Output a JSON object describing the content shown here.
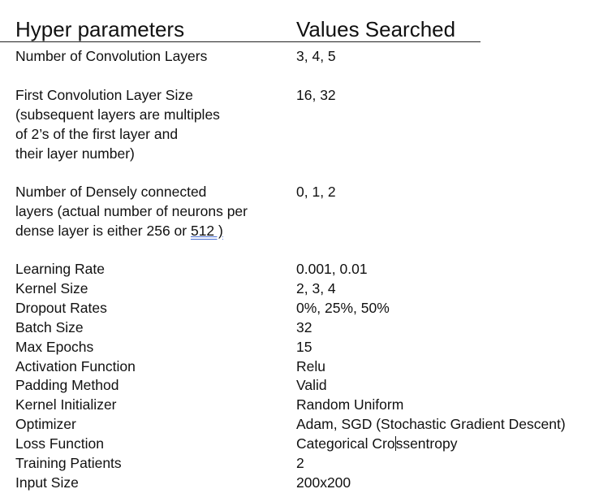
{
  "header": {
    "col1": "Hyper parameters",
    "col2": "Values Searched"
  },
  "rows": [
    {
      "param_lines": [
        "Number of Convolution Layers"
      ],
      "value": "3, 4, 5"
    },
    {
      "param_lines": [
        "First Convolution Layer Size",
        "(subsequent layers are multiples",
        "of 2’s of the first layer and",
        "their layer number)"
      ],
      "value": "16, 32"
    },
    {
      "param_lines": [
        "Number of Densely connected",
        "layers (actual number of neurons per",
        "dense layer is either 256 or "
      ],
      "param_tail_underlined": "512 )",
      "value": "0, 1, 2"
    },
    {
      "param_lines": [
        "Learning Rate"
      ],
      "value": "0.001, 0.01"
    },
    {
      "param_lines": [
        "Kernel Size"
      ],
      "value": "2, 3, 4"
    },
    {
      "param_lines": [
        "Dropout Rates"
      ],
      "value": "0%, 25%, 50%"
    },
    {
      "param_lines": [
        "Batch Size"
      ],
      "value": "32"
    },
    {
      "param_lines": [
        "Max Epochs"
      ],
      "value": "15"
    },
    {
      "param_lines": [
        "Activation Function"
      ],
      "value": "Relu"
    },
    {
      "param_lines": [
        "Padding Method"
      ],
      "value": "Valid"
    },
    {
      "param_lines": [
        "Kernel Initializer"
      ],
      "value": "Random Uniform"
    },
    {
      "param_lines": [
        "Optimizer"
      ],
      "value": "Adam, SGD (Stochastic Gradient Descent)"
    },
    {
      "param_lines": [
        "Loss Function"
      ],
      "value_pre": "Categorical Cro",
      "value_post": "ssentropy"
    },
    {
      "param_lines": [
        "Training Patients"
      ],
      "value": "2"
    },
    {
      "param_lines": [
        "Input Size"
      ],
      "value": "200x200"
    }
  ]
}
